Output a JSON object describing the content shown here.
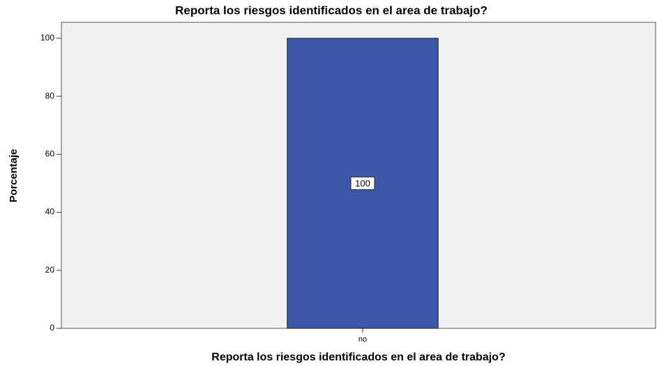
{
  "chart_data": {
    "type": "bar",
    "title": "Reporta los riesgos identificados en el area de trabajo?",
    "x_label": "Reporta los riesgos identificados en el area de trabajo?",
    "y_label": "Porcentaje",
    "categories": [
      "no"
    ],
    "values": [
      100
    ],
    "color": "#3d56a8",
    "ylim": [
      0,
      105.5
    ],
    "yticks": [
      0,
      20,
      40,
      60,
      80,
      100
    ],
    "grid": false,
    "data_labels": true
  }
}
